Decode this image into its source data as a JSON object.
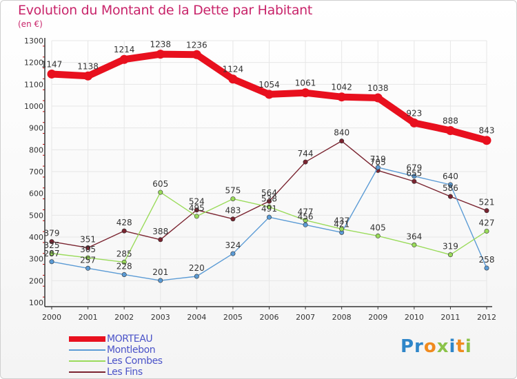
{
  "title": "Evolution du Montant de la Dette par Habitant",
  "subtitle": "(en €)",
  "logo": "Proxiti",
  "colors": {
    "title": "#c8246a",
    "axis": "#333333",
    "grid": "#e6e6e6",
    "tick": "#c00000"
  },
  "chart_data": {
    "type": "line",
    "x": [
      2000,
      2001,
      2002,
      2003,
      2004,
      2005,
      2006,
      2007,
      2008,
      2009,
      2010,
      2011,
      2012
    ],
    "ylim": [
      100,
      1300
    ],
    "yticks": [
      100,
      200,
      300,
      400,
      500,
      600,
      700,
      800,
      900,
      1000,
      1100,
      1200,
      1300
    ],
    "grid": true,
    "legend": "bottom-left",
    "series": [
      {
        "name": "MORTEAU",
        "color": "#e8101e",
        "values": [
          1147,
          1138,
          1214,
          1238,
          1236,
          1124,
          1054,
          1061,
          1042,
          1038,
          923,
          888,
          843
        ]
      },
      {
        "name": "Montlebon",
        "color": "#5b9bd5",
        "values": [
          287,
          257,
          228,
          201,
          220,
          324,
          491,
          456,
          421,
          719,
          679,
          640,
          258
        ]
      },
      {
        "name": "Les Combes",
        "color": "#9adb5a",
        "values": [
          325,
          305,
          285,
          605,
          495,
          575,
          538,
          477,
          437,
          405,
          364,
          319,
          427
        ]
      },
      {
        "name": "Les Fins",
        "color": "#7a2430",
        "values": [
          379,
          351,
          428,
          388,
          524,
          483,
          564,
          744,
          840,
          705,
          655,
          586,
          521
        ]
      }
    ]
  }
}
